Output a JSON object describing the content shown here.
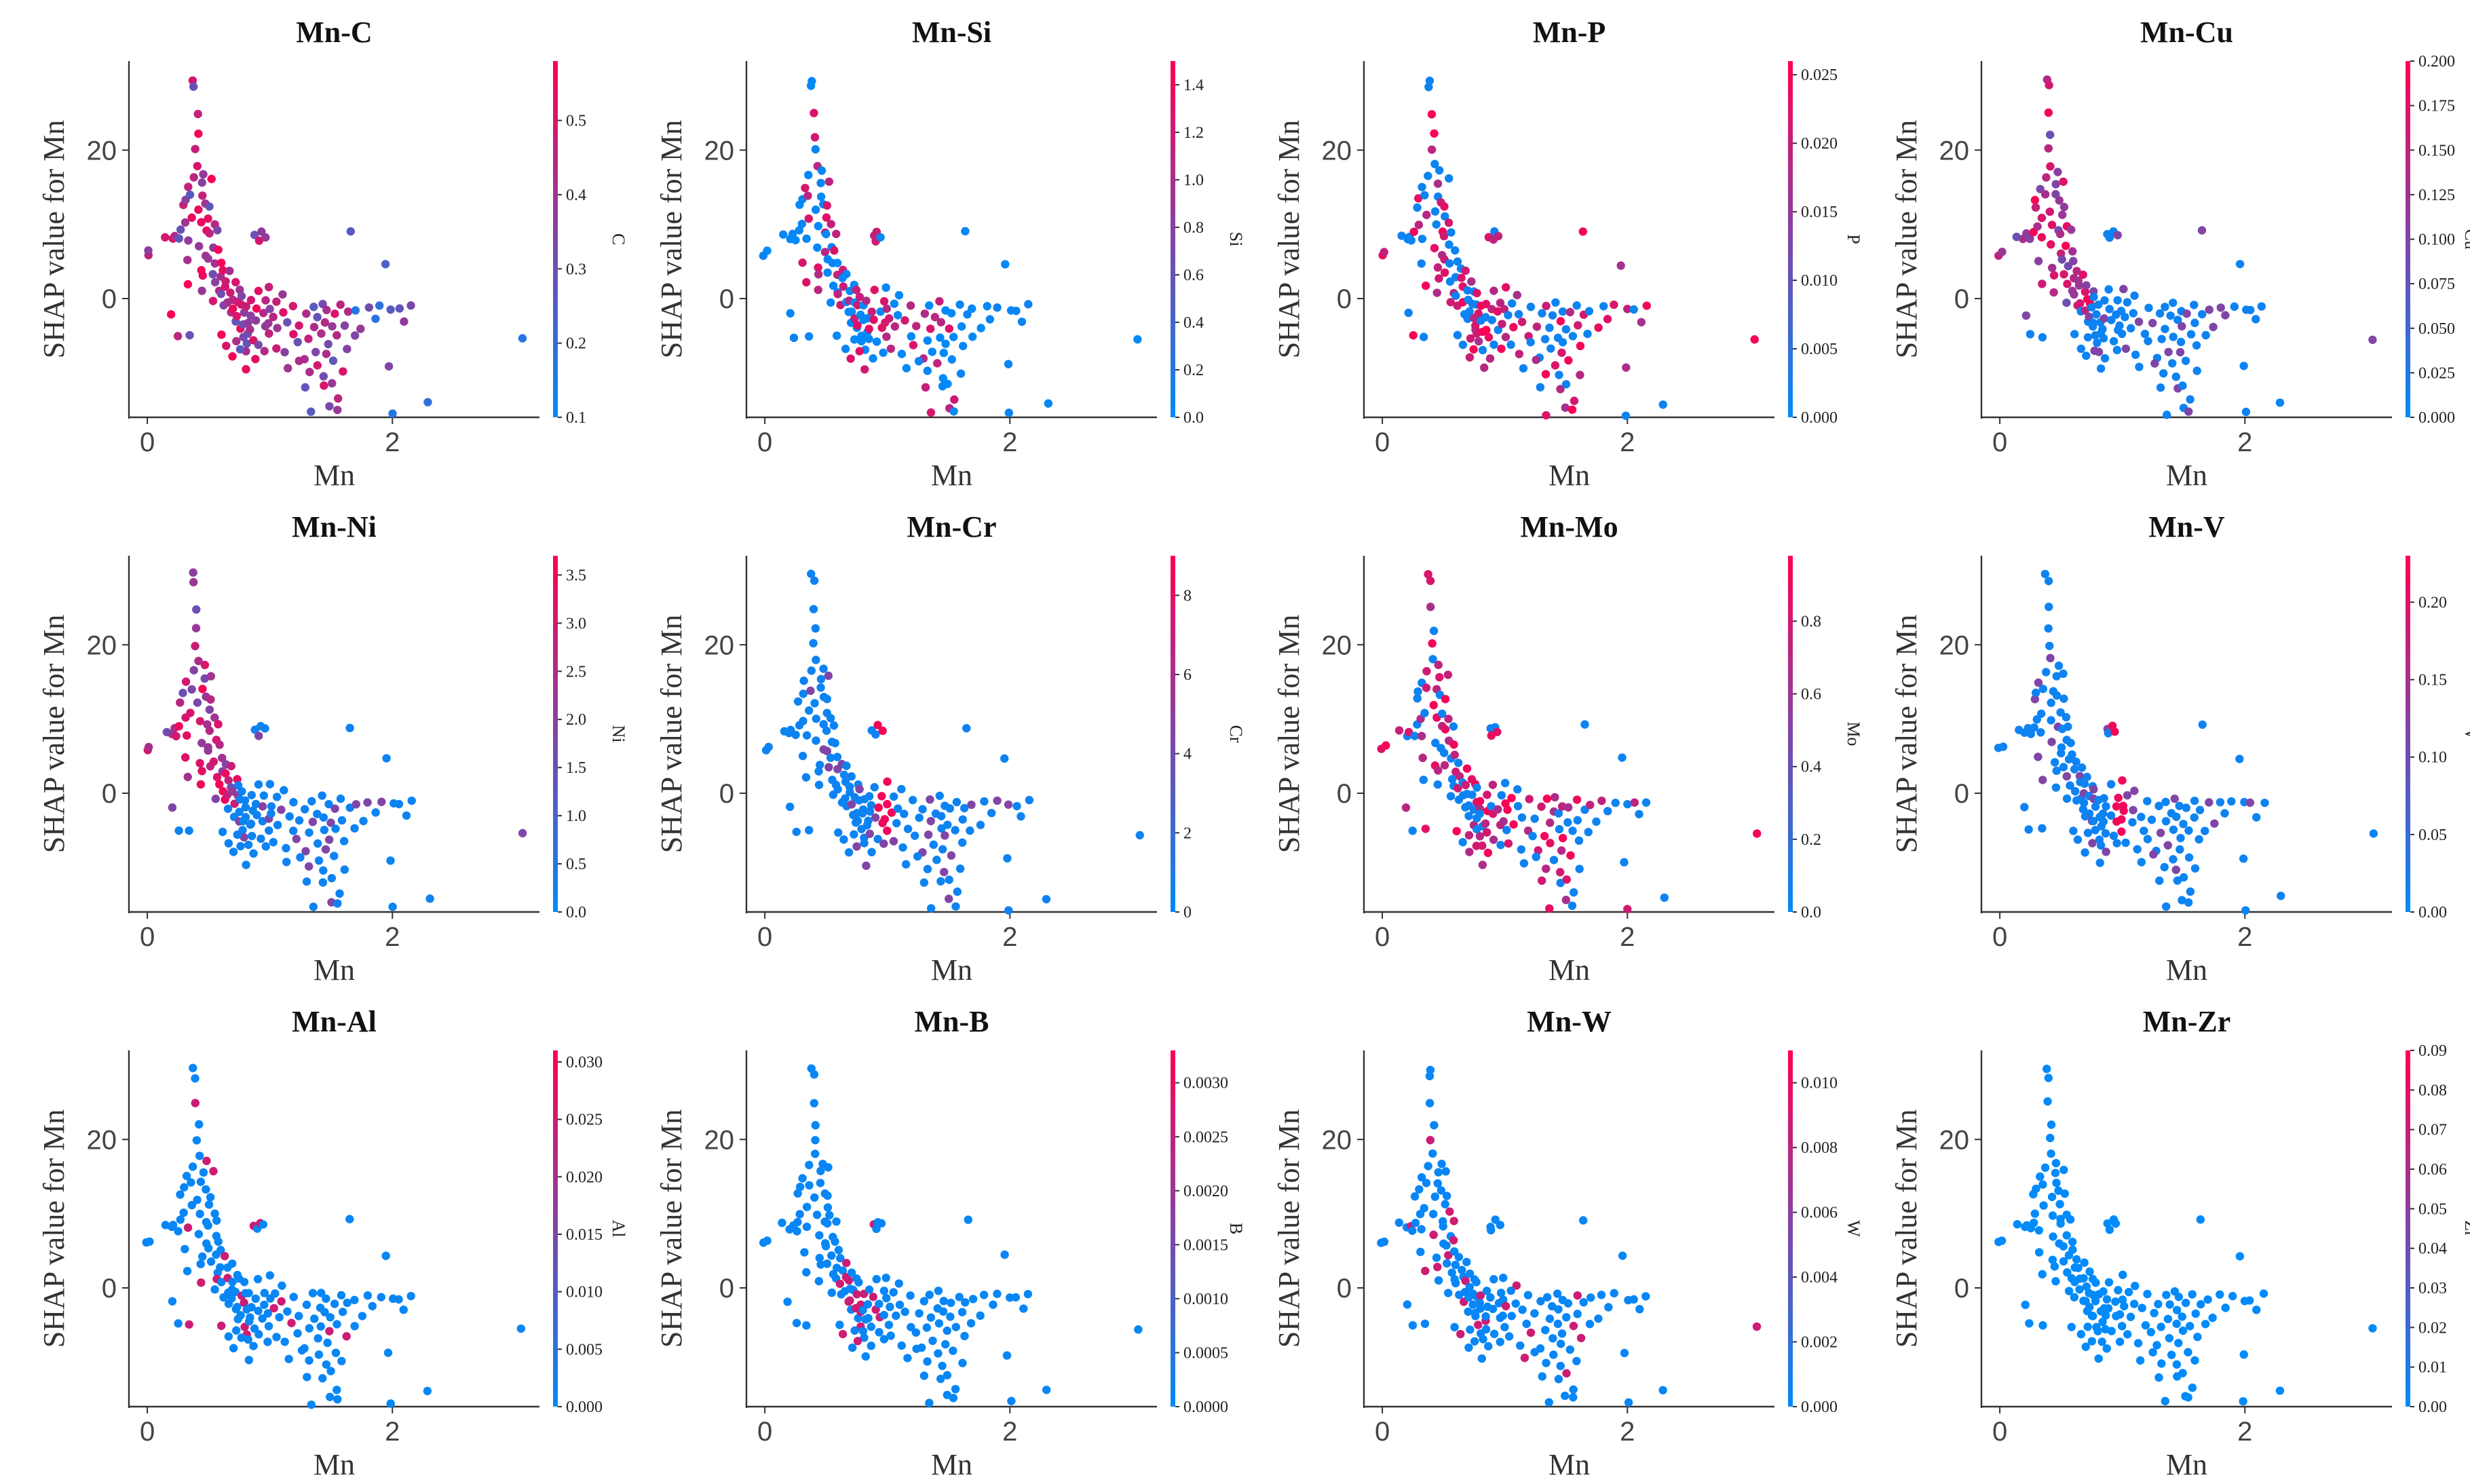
{
  "chart_data": [
    {
      "type": "scatter",
      "title": "Mn-C",
      "xlabel": "Mn",
      "ylabel": "SHAP value for Mn",
      "xlim": [
        -0.15,
        3.2
      ],
      "ylim": [
        -16,
        32
      ],
      "xticks": [
        0,
        2
      ],
      "yticks": [
        0,
        20
      ],
      "colorbar": {
        "label": "C",
        "min": 0.1,
        "max": 0.58,
        "ticks": [
          "0.1",
          "0.2",
          "0.3",
          "0.4",
          "0.5"
        ],
        "tick_values": [
          0.1,
          0.2,
          0.3,
          0.4,
          0.5
        ]
      },
      "highlight": "low_mn_high"
    },
    {
      "type": "scatter",
      "title": "Mn-Si",
      "xlabel": "Mn",
      "ylabel": "SHAP value for Mn",
      "xlim": [
        -0.15,
        3.2
      ],
      "ylim": [
        -16,
        32
      ],
      "xticks": [
        0,
        2
      ],
      "yticks": [
        0,
        20
      ],
      "colorbar": {
        "label": "Si",
        "min": 0.0,
        "max": 1.5,
        "ticks": [
          "0.0",
          "0.2",
          "0.4",
          "0.6",
          "0.8",
          "1.0",
          "1.2",
          "1.4"
        ],
        "tick_values": [
          0,
          0.2,
          0.4,
          0.6,
          0.8,
          1.0,
          1.2,
          1.4
        ]
      },
      "highlight": "cluster_mid"
    },
    {
      "type": "scatter",
      "title": "Mn-P",
      "xlabel": "Mn",
      "ylabel": "SHAP value for Mn",
      "xlim": [
        -0.15,
        3.2
      ],
      "ylim": [
        -16,
        32
      ],
      "xticks": [
        0,
        2
      ],
      "yticks": [
        0,
        20
      ],
      "colorbar": {
        "label": "P",
        "min": 0.0,
        "max": 0.026,
        "ticks": [
          "0.000",
          "0.005",
          "0.010",
          "0.015",
          "0.020",
          "0.025"
        ],
        "tick_values": [
          0,
          0.005,
          0.01,
          0.015,
          0.02,
          0.025
        ]
      },
      "highlight": "mixed"
    },
    {
      "type": "scatter",
      "title": "Mn-Cu",
      "xlabel": "Mn",
      "ylabel": "SHAP value for Mn",
      "xlim": [
        -0.15,
        3.2
      ],
      "ylim": [
        -16,
        32
      ],
      "xticks": [
        0,
        2
      ],
      "yticks": [
        0,
        20
      ],
      "colorbar": {
        "label": "Cu",
        "min": 0.0,
        "max": 0.2,
        "ticks": [
          "0.000",
          "0.025",
          "0.050",
          "0.075",
          "0.100",
          "0.125",
          "0.150",
          "0.175",
          "0.200"
        ],
        "tick_values": [
          0,
          0.025,
          0.05,
          0.075,
          0.1,
          0.125,
          0.15,
          0.175,
          0.2
        ]
      },
      "highlight": "low_mn_mid"
    },
    {
      "type": "scatter",
      "title": "Mn-Ni",
      "xlabel": "Mn",
      "ylabel": "SHAP value for Mn",
      "xlim": [
        -0.15,
        3.2
      ],
      "ylim": [
        -16,
        32
      ],
      "xticks": [
        0,
        2
      ],
      "yticks": [
        0,
        20
      ],
      "colorbar": {
        "label": "Ni",
        "min": 0.0,
        "max": 3.7,
        "ticks": [
          "0.0",
          "0.5",
          "1.0",
          "1.5",
          "2.0",
          "2.5",
          "3.0",
          "3.5"
        ],
        "tick_values": [
          0,
          0.5,
          1.0,
          1.5,
          2.0,
          2.5,
          3.0,
          3.5
        ]
      },
      "highlight": "low_mn_mid"
    },
    {
      "type": "scatter",
      "title": "Mn-Cr",
      "xlabel": "Mn",
      "ylabel": "SHAP value for Mn",
      "xlim": [
        -0.15,
        3.2
      ],
      "ylim": [
        -16,
        32
      ],
      "xticks": [
        0,
        2
      ],
      "yticks": [
        0,
        20
      ],
      "colorbar": {
        "label": "Cr",
        "min": 0.0,
        "max": 9.0,
        "ticks": [
          "0",
          "2",
          "4",
          "6",
          "8"
        ],
        "tick_values": [
          0,
          2,
          4,
          6,
          8
        ]
      },
      "highlight": "column_1"
    },
    {
      "type": "scatter",
      "title": "Mn-Mo",
      "xlabel": "Mn",
      "ylabel": "SHAP value for Mn",
      "xlim": [
        -0.15,
        3.2
      ],
      "ylim": [
        -16,
        32
      ],
      "xticks": [
        0,
        2
      ],
      "yticks": [
        0,
        20
      ],
      "colorbar": {
        "label": "Mo",
        "min": 0.0,
        "max": 0.98,
        "ticks": [
          "0.0",
          "0.2",
          "0.4",
          "0.6",
          "0.8"
        ],
        "tick_values": [
          0,
          0.2,
          0.4,
          0.6,
          0.8
        ]
      },
      "highlight": "mixed"
    },
    {
      "type": "scatter",
      "title": "Mn-V",
      "xlabel": "Mn",
      "ylabel": "SHAP value for Mn",
      "xlim": [
        -0.15,
        3.2
      ],
      "ylim": [
        -16,
        32
      ],
      "xticks": [
        0,
        2
      ],
      "yticks": [
        0,
        20
      ],
      "colorbar": {
        "label": "V",
        "min": 0.0,
        "max": 0.23,
        "ticks": [
          "0.00",
          "0.05",
          "0.10",
          "0.15",
          "0.20"
        ],
        "tick_values": [
          0,
          0.05,
          0.1,
          0.15,
          0.2
        ]
      },
      "highlight": "column_1"
    },
    {
      "type": "scatter",
      "title": "Mn-Al",
      "xlabel": "Mn",
      "ylabel": "SHAP value for Mn",
      "xlim": [
        -0.15,
        3.2
      ],
      "ylim": [
        -16,
        32
      ],
      "xticks": [
        0,
        2
      ],
      "yticks": [
        0,
        20
      ],
      "colorbar": {
        "label": "Al",
        "min": 0.0,
        "max": 0.031,
        "ticks": [
          "0.000",
          "0.005",
          "0.010",
          "0.015",
          "0.020",
          "0.025",
          "0.030"
        ],
        "tick_values": [
          0,
          0.005,
          0.01,
          0.015,
          0.02,
          0.025,
          0.03
        ]
      },
      "highlight": "sparse"
    },
    {
      "type": "scatter",
      "title": "Mn-B",
      "xlabel": "Mn",
      "ylabel": "SHAP value for Mn",
      "xlim": [
        -0.15,
        3.2
      ],
      "ylim": [
        -16,
        32
      ],
      "xticks": [
        0,
        2
      ],
      "yticks": [
        0,
        20
      ],
      "colorbar": {
        "label": "B",
        "min": 0.0,
        "max": 0.0033,
        "ticks": [
          "0.0000",
          "0.0005",
          "0.0010",
          "0.0015",
          "0.0020",
          "0.0025",
          "0.0030"
        ],
        "tick_values": [
          0,
          0.0005,
          0.001,
          0.0015,
          0.002,
          0.0025,
          0.003
        ]
      },
      "highlight": "sparse_mid"
    },
    {
      "type": "scatter",
      "title": "Mn-W",
      "xlabel": "Mn",
      "ylabel": "SHAP value for Mn",
      "xlim": [
        -0.15,
        3.2
      ],
      "ylim": [
        -16,
        32
      ],
      "xticks": [
        0,
        2
      ],
      "yticks": [
        0,
        20
      ],
      "colorbar": {
        "label": "W",
        "min": 0.0,
        "max": 0.011,
        "ticks": [
          "0.000",
          "0.002",
          "0.004",
          "0.006",
          "0.008",
          "0.010"
        ],
        "tick_values": [
          0,
          0.002,
          0.004,
          0.006,
          0.008,
          0.01
        ]
      },
      "highlight": "sparse"
    },
    {
      "type": "scatter",
      "title": "Mn-Zr",
      "xlabel": "Mn",
      "ylabel": "SHAP value for Mn",
      "xlim": [
        -0.15,
        3.2
      ],
      "ylim": [
        -16,
        32
      ],
      "xticks": [
        0,
        2
      ],
      "yticks": [
        0,
        20
      ],
      "colorbar": {
        "label": "Zr",
        "min": 0.0,
        "max": 0.09,
        "ticks": [
          "0.00",
          "0.01",
          "0.02",
          "0.03",
          "0.04",
          "0.05",
          "0.06",
          "0.07",
          "0.08",
          "0.09"
        ],
        "tick_values": [
          0,
          0.01,
          0.02,
          0.03,
          0.04,
          0.05,
          0.06,
          0.07,
          0.08,
          0.09
        ]
      },
      "highlight": "none"
    }
  ],
  "points_base": [
    [
      0.0,
      6.0
    ],
    [
      0.02,
      6.3
    ],
    [
      0.2,
      8.0
    ],
    [
      0.22,
      8.5
    ],
    [
      0.25,
      7.8
    ],
    [
      0.27,
      9.0
    ],
    [
      0.28,
      12.5
    ],
    [
      0.3,
      13.5
    ],
    [
      0.3,
      10.0
    ],
    [
      0.32,
      15.0
    ],
    [
      0.32,
      5.0
    ],
    [
      0.33,
      8.0
    ],
    [
      0.34,
      2.0
    ],
    [
      0.35,
      11.0
    ],
    [
      0.36,
      14.0
    ],
    [
      0.37,
      16.5
    ],
    [
      0.38,
      29.5
    ],
    [
      0.39,
      28.5
    ],
    [
      0.4,
      25.0
    ],
    [
      0.4,
      20.0
    ],
    [
      0.41,
      22.0
    ],
    [
      0.42,
      18.0
    ],
    [
      0.42,
      12.0
    ],
    [
      0.43,
      10.0
    ],
    [
      0.43,
      7.0
    ],
    [
      0.44,
      4.0
    ],
    [
      0.45,
      3.0
    ],
    [
      0.45,
      14.0
    ],
    [
      0.46,
      15.5
    ],
    [
      0.47,
      17.0
    ],
    [
      0.48,
      13.0
    ],
    [
      0.48,
      9.0
    ],
    [
      0.49,
      6.0
    ],
    [
      0.5,
      11.0
    ],
    [
      0.5,
      8.5
    ],
    [
      0.51,
      5.5
    ],
    [
      0.52,
      3.5
    ],
    [
      0.52,
      12.5
    ],
    [
      0.53,
      16.0
    ],
    [
      0.54,
      10.0
    ],
    [
      0.55,
      7.0
    ],
    [
      0.55,
      4.5
    ],
    [
      0.56,
      2.0
    ],
    [
      0.57,
      9.0
    ],
    [
      0.58,
      6.5
    ],
    [
      0.58,
      1.0
    ],
    [
      0.6,
      5.0
    ],
    [
      0.6,
      3.0
    ],
    [
      0.61,
      0.5
    ],
    [
      0.62,
      -1.0
    ],
    [
      0.63,
      4.0
    ],
    [
      0.64,
      2.5
    ],
    [
      0.65,
      1.5
    ],
    [
      0.66,
      -0.5
    ],
    [
      0.67,
      -2.0
    ],
    [
      0.68,
      3.5
    ],
    [
      0.69,
      1.0
    ],
    [
      0.7,
      -1.5
    ],
    [
      0.7,
      0.0
    ],
    [
      0.71,
      -3.0
    ],
    [
      0.72,
      2.0
    ],
    [
      0.73,
      -0.5
    ],
    [
      0.74,
      -2.5
    ],
    [
      0.75,
      -4.0
    ],
    [
      0.75,
      1.0
    ],
    [
      0.76,
      -1.0
    ],
    [
      0.77,
      -3.5
    ],
    [
      0.78,
      -5.0
    ],
    [
      0.78,
      0.5
    ],
    [
      0.79,
      -2.0
    ],
    [
      0.8,
      -6.0
    ],
    [
      0.8,
      -1.0
    ],
    [
      0.81,
      -3.0
    ],
    [
      0.82,
      -7.0
    ],
    [
      0.83,
      -4.5
    ],
    [
      0.84,
      -0.5
    ],
    [
      0.85,
      -2.5
    ],
    [
      0.86,
      -5.5
    ],
    [
      0.87,
      -8.0
    ],
    [
      0.88,
      -1.5
    ],
    [
      0.88,
      8.5
    ],
    [
      0.9,
      8.0
    ],
    [
      0.92,
      9.0
    ],
    [
      0.95,
      8.5
    ],
    [
      0.9,
      -3.0
    ],
    [
      0.92,
      -6.0
    ],
    [
      0.94,
      -2.0
    ],
    [
      0.95,
      -4.0
    ],
    [
      0.96,
      -0.5
    ],
    [
      0.97,
      -7.0
    ],
    [
      0.98,
      -3.5
    ],
    [
      1.0,
      -1.5
    ],
    [
      1.0,
      -5.0
    ],
    [
      1.02,
      -2.5
    ],
    [
      1.04,
      -6.5
    ],
    [
      1.05,
      -0.5
    ],
    [
      1.07,
      -4.0
    ],
    [
      1.1,
      -2.0
    ],
    [
      1.12,
      -7.5
    ],
    [
      1.15,
      -3.0
    ],
    [
      1.18,
      -5.0
    ],
    [
      1.2,
      -1.0
    ],
    [
      1.22,
      -6.0
    ],
    [
      1.25,
      -3.5
    ],
    [
      1.28,
      -8.0
    ],
    [
      1.3,
      -2.0
    ],
    [
      1.32,
      -5.5
    ],
    [
      1.33,
      -10.0
    ],
    [
      1.35,
      -1.0
    ],
    [
      1.36,
      -4.0
    ],
    [
      1.38,
      -7.0
    ],
    [
      1.4,
      -2.5
    ],
    [
      1.4,
      -9.0
    ],
    [
      1.42,
      -0.5
    ],
    [
      1.43,
      -5.0
    ],
    [
      1.44,
      -12.0
    ],
    [
      1.45,
      -3.0
    ],
    [
      1.46,
      -7.5
    ],
    [
      1.47,
      -1.5
    ],
    [
      1.48,
      -6.0
    ],
    [
      1.5,
      -4.0
    ],
    [
      1.5,
      -14.5
    ],
    [
      1.52,
      -2.0
    ],
    [
      1.53,
      -8.5
    ],
    [
      1.55,
      -5.0
    ],
    [
      1.56,
      -13.5
    ],
    [
      1.58,
      -1.0
    ],
    [
      1.6,
      -3.5
    ],
    [
      1.62,
      -6.5
    ],
    [
      1.64,
      -2.0
    ],
    [
      1.65,
      9.0
    ],
    [
      1.68,
      -5.0
    ],
    [
      1.7,
      -1.5
    ],
    [
      1.75,
      -4.0
    ],
    [
      1.8,
      -1.0
    ],
    [
      1.85,
      -2.5
    ],
    [
      1.9,
      -1.0
    ],
    [
      1.95,
      4.5
    ],
    [
      1.98,
      -9.0
    ],
    [
      2.0,
      -1.5
    ],
    [
      2.0,
      -15.5
    ],
    [
      2.05,
      -1.5
    ],
    [
      2.1,
      -3.0
    ],
    [
      2.15,
      -1.0
    ],
    [
      2.3,
      -14.0
    ],
    [
      3.05,
      -5.5
    ],
    [
      1.35,
      -15.5
    ],
    [
      1.55,
      -15.0
    ],
    [
      0.25,
      -5.0
    ],
    [
      0.2,
      -2.0
    ],
    [
      0.35,
      -5.0
    ],
    [
      0.15,
      8.5
    ],
    [
      0.45,
      1.0
    ],
    [
      0.55,
      -0.5
    ],
    [
      0.6,
      -5.0
    ],
    [
      0.65,
      -6.5
    ],
    [
      0.7,
      -8.0
    ],
    [
      0.72,
      -5.5
    ],
    [
      0.76,
      -7.0
    ],
    [
      0.82,
      -9.5
    ],
    [
      0.85,
      -4.0
    ],
    [
      0.9,
      1.0
    ],
    [
      1.0,
      1.5
    ],
    [
      1.1,
      0.5
    ],
    [
      1.15,
      -9.5
    ],
    [
      1.25,
      -8.5
    ],
    [
      1.3,
      -12.0
    ],
    [
      1.45,
      -10.5
    ],
    [
      1.5,
      -11.5
    ],
    [
      1.6,
      -10.0
    ]
  ]
}
